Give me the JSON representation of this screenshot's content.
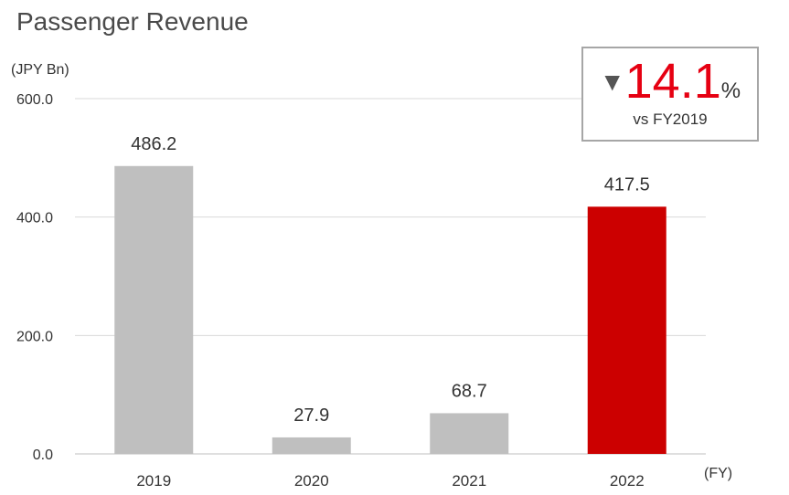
{
  "chart_data": {
    "type": "bar",
    "title": "Passenger Revenue",
    "ylabel": "(JPY Bn)",
    "xlabel": "(FY)",
    "categories": [
      "2019",
      "2020",
      "2021",
      "2022"
    ],
    "values": [
      486.2,
      27.9,
      68.7,
      417.5
    ],
    "value_labels": [
      "486.2",
      "27.9",
      "68.7",
      "417.5"
    ],
    "ylim": [
      0,
      600
    ],
    "yticks": [
      {
        "value": 0,
        "label": "0.0"
      },
      {
        "value": 200,
        "label": "200.0"
      },
      {
        "value": 400,
        "label": "400.0"
      },
      {
        "value": 600,
        "label": "600.0"
      }
    ],
    "grid": true,
    "colors": [
      "#bfbfbf",
      "#bfbfbf",
      "#bfbfbf",
      "#cc0000"
    ],
    "annotation": {
      "marker": "▼",
      "value": "14.1",
      "unit": "%",
      "text": "vs FY2019",
      "value_color": "#e60012"
    }
  }
}
